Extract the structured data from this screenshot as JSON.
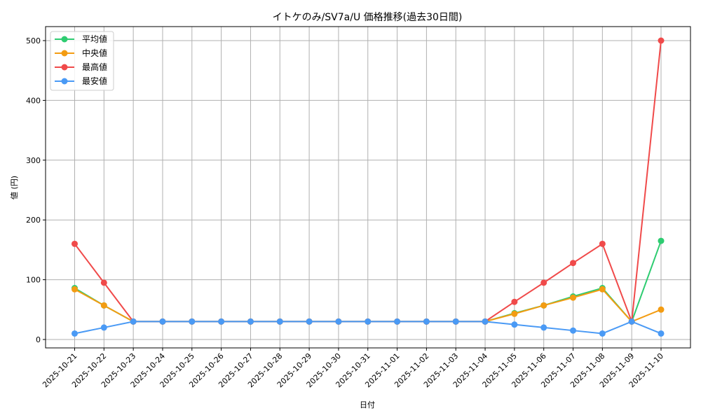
{
  "chart_data": {
    "type": "line",
    "title": "イトケのみ/SV7a/U 価格推移(過去30日間)",
    "xlabel": "日付",
    "ylabel": "値 (円)",
    "ylim": [
      -15,
      525
    ],
    "yticks": [
      0,
      100,
      200,
      300,
      400,
      500
    ],
    "grid": true,
    "legend_position": "upper left",
    "categories": [
      "2025-10-21",
      "2025-10-22",
      "2025-10-23",
      "2025-10-24",
      "2025-10-25",
      "2025-10-26",
      "2025-10-27",
      "2025-10-28",
      "2025-10-29",
      "2025-10-30",
      "2025-10-31",
      "2025-11-01",
      "2025-11-02",
      "2025-11-03",
      "2025-11-04",
      "2025-11-05",
      "2025-11-06",
      "2025-11-07",
      "2025-11-08",
      "2025-11-09",
      "2025-11-10"
    ],
    "series": [
      {
        "name": "平均値",
        "color": "#2ecc71",
        "values": [
          86,
          57,
          30,
          30,
          30,
          30,
          30,
          30,
          30,
          30,
          30,
          30,
          30,
          30,
          30,
          44,
          57,
          72,
          86,
          30,
          165
        ]
      },
      {
        "name": "中央値",
        "color": "#f39c12",
        "values": [
          84,
          57,
          30,
          30,
          30,
          30,
          30,
          30,
          30,
          30,
          30,
          30,
          30,
          30,
          30,
          43,
          57,
          70,
          84,
          30,
          50
        ]
      },
      {
        "name": "最高値",
        "color": "#f04a4a",
        "values": [
          160,
          95,
          30,
          30,
          30,
          30,
          30,
          30,
          30,
          30,
          30,
          30,
          30,
          30,
          30,
          63,
          95,
          128,
          160,
          30,
          500
        ]
      },
      {
        "name": "最安値",
        "color": "#4a9af5",
        "values": [
          10,
          20,
          30,
          30,
          30,
          30,
          30,
          30,
          30,
          30,
          30,
          30,
          30,
          30,
          30,
          25,
          20,
          15,
          10,
          30,
          10
        ]
      }
    ]
  }
}
